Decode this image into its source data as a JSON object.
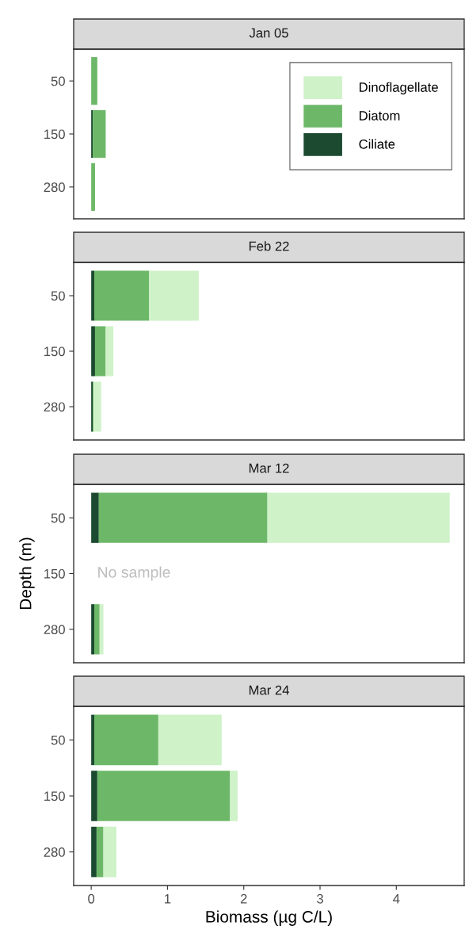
{
  "chart_data": [
    {
      "type": "bar",
      "title": "Jan 05",
      "orientation": "horizontal",
      "stacked": true,
      "categories": [
        "50",
        "150",
        "280"
      ],
      "xlim": [
        -0.23,
        4.89
      ],
      "xticks": [
        0,
        1,
        2,
        3,
        4
      ],
      "tick_labels": "y",
      "legend": "top right",
      "series": [
        {
          "name": "Ciliate",
          "color": "#1b4a30",
          "values": [
            0,
            0.02,
            0
          ]
        },
        {
          "name": "Diatom",
          "color": "#6db868",
          "values": [
            0.08,
            0.17,
            0.05
          ]
        },
        {
          "name": "Dinoflagellate",
          "color": "#cff2c8",
          "values": [
            0,
            0,
            0
          ]
        }
      ]
    },
    {
      "type": "bar",
      "title": "Feb 22",
      "orientation": "horizontal",
      "stacked": true,
      "categories": [
        "50",
        "150",
        "280"
      ],
      "xlim": [
        -0.23,
        4.89
      ],
      "xticks": [
        0,
        1,
        2,
        3,
        4
      ],
      "tick_labels": "y",
      "series": [
        {
          "color": "#1b4a30",
          "values": [
            0.04,
            0.05,
            0.02
          ]
        },
        {
          "color": "#6db868",
          "values": [
            0.72,
            0.14,
            0.01
          ]
        },
        {
          "color": "#cff2c8",
          "values": [
            0.65,
            0.1,
            0.1
          ]
        }
      ]
    },
    {
      "type": "bar",
      "title": "Mar 12",
      "orientation": "horizontal",
      "stacked": true,
      "ylabel": "Depth (m)",
      "categories": [
        "50",
        "150",
        "280"
      ],
      "xlim": [
        -0.23,
        4.89
      ],
      "xticks": [
        0,
        1,
        2,
        3,
        4
      ],
      "tick_labels": "y",
      "annotations": [
        "No sample"
      ],
      "series": [
        {
          "color": "#1b4a30",
          "values": [
            0.1,
            null,
            0.04
          ]
        },
        {
          "color": "#6db868",
          "values": [
            2.21,
            null,
            0.07
          ]
        },
        {
          "color": "#cff2c8",
          "values": [
            2.39,
            null,
            0.05
          ]
        }
      ]
    },
    {
      "type": "bar",
      "title": "Mar 24",
      "orientation": "horizontal",
      "stacked": true,
      "xlabel": "Biomass (µg C/L)",
      "categories": [
        "50",
        "150",
        "280"
      ],
      "xlim": [
        -0.23,
        4.89
      ],
      "xticks": [
        0,
        1,
        2,
        3,
        4
      ],
      "series": [
        {
          "color": "#1b4a30",
          "values": [
            0.04,
            0.08,
            0.07
          ]
        },
        {
          "color": "#6db868",
          "values": [
            0.84,
            1.74,
            0.09
          ]
        },
        {
          "color": "#cff2c8",
          "values": [
            0.83,
            0.1,
            0.17
          ]
        }
      ]
    }
  ]
}
